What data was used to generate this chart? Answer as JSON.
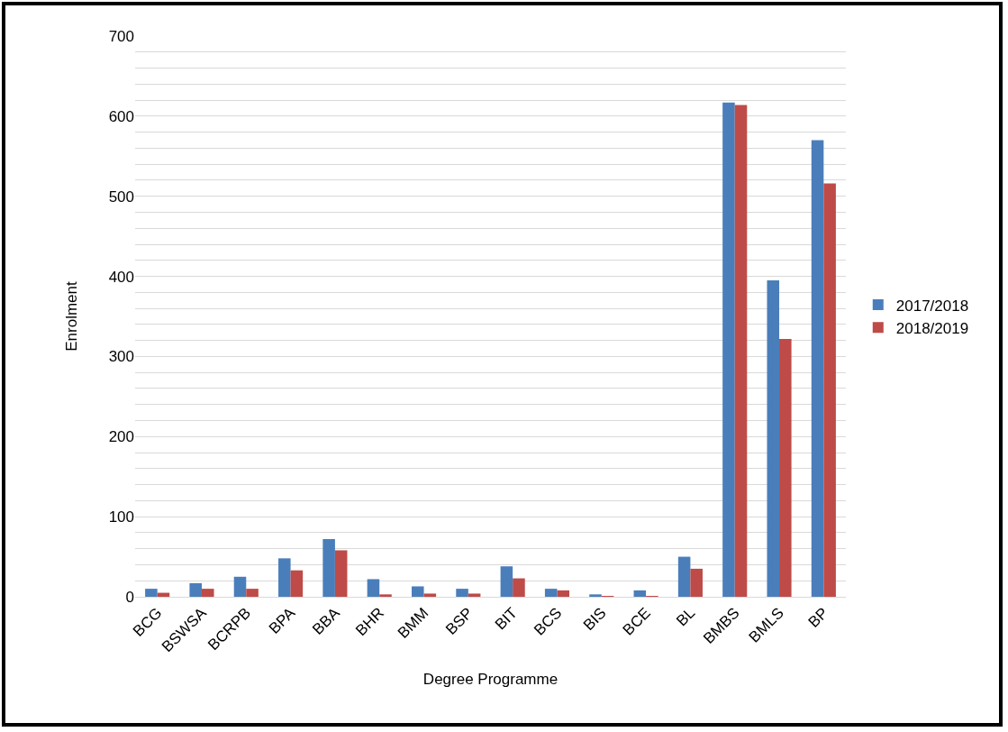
{
  "chart_data": {
    "type": "bar",
    "xlabel": "Degree Programme",
    "ylabel": "Enrolment",
    "categories": [
      "BCG",
      "BSWSA",
      "BCRPB",
      "BPA",
      "BBA",
      "BHR",
      "BMM",
      "BSP",
      "BIT",
      "BCS",
      "BIS",
      "BCE",
      "BL",
      "BMBS",
      "BMLS",
      "BP"
    ],
    "series": [
      {
        "name": "2017/2018",
        "color": "#4a7ebb",
        "values": [
          10,
          17,
          25,
          48,
          72,
          22,
          13,
          10,
          38,
          10,
          3,
          8,
          50,
          617,
          395,
          570
        ]
      },
      {
        "name": "2018/2019",
        "color": "#be4b48",
        "values": [
          5,
          10,
          10,
          33,
          58,
          3,
          4,
          4,
          23,
          8,
          1,
          1,
          35,
          614,
          322,
          516
        ]
      }
    ],
    "ylim": [
      0,
      700
    ],
    "yticks": [
      0,
      {
        "value": 20,
        "label": null
      },
      {
        "value": 40,
        "label": null
      },
      {
        "value": 60,
        "label": null
      },
      {
        "value": 80,
        "label": null
      },
      100,
      {
        "value": 120,
        "label": null
      },
      {
        "value": 140,
        "label": null
      },
      {
        "value": 160,
        "label": null
      },
      {
        "value": 180,
        "label": null
      },
      200,
      {
        "value": 220,
        "label": null
      },
      {
        "value": 240,
        "label": null
      },
      {
        "value": 260,
        "label": null
      },
      {
        "value": 280,
        "label": null
      },
      300,
      {
        "value": 320,
        "label": null
      },
      {
        "value": 340,
        "label": null
      },
      {
        "value": 360,
        "label": null
      },
      {
        "value": 380,
        "label": null
      },
      400,
      {
        "value": 420,
        "label": null
      },
      {
        "value": 440,
        "label": null
      },
      {
        "value": 460,
        "label": null
      },
      {
        "value": 480,
        "label": null
      },
      500,
      {
        "value": 520,
        "label": null
      },
      {
        "value": 540,
        "label": null
      },
      {
        "value": 560,
        "label": null
      },
      {
        "value": 580,
        "label": null
      },
      600,
      {
        "value": 620,
        "label": null
      },
      {
        "value": 640,
        "label": null
      },
      {
        "value": 660,
        "label": null
      },
      {
        "value": 680,
        "label": null
      },
      700
    ],
    "grid": true,
    "legend": "right"
  }
}
